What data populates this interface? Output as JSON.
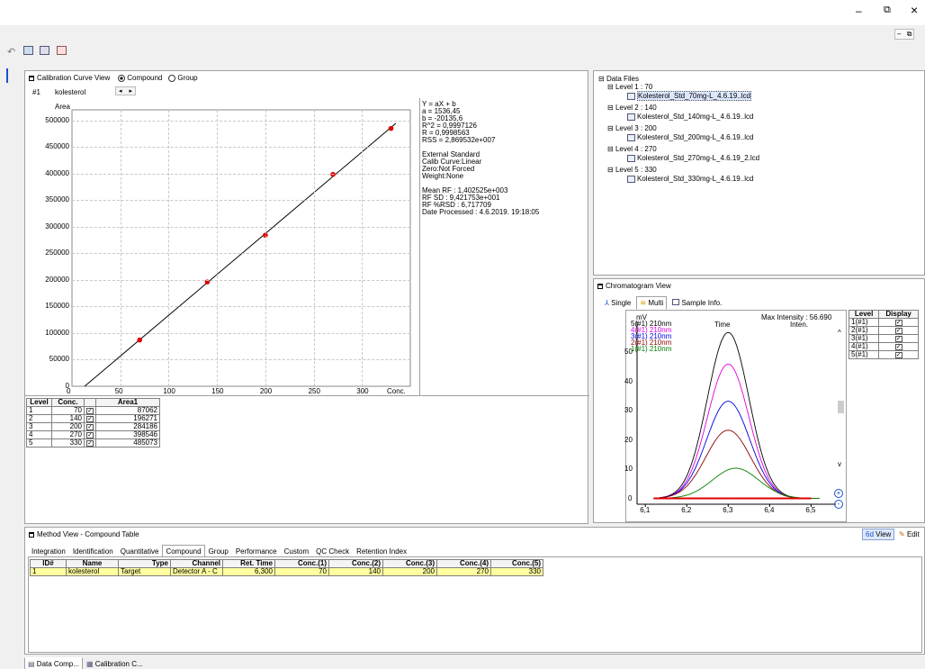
{
  "window_controls": {
    "minimize": "–",
    "restore": "⧉",
    "close": "×",
    "sub_minimize": "–",
    "sub_restore": "⧉"
  },
  "calib": {
    "title": "Calibration Curve View",
    "radio_compound": "Compound",
    "radio_group": "Group",
    "compound_id": "#1",
    "compound_name": "kolesterol",
    "nav_prev": "◂",
    "nav_next": "▸",
    "ylabel": "Area",
    "xlabel": "Conc.",
    "yticks": [
      "500000",
      "450000",
      "400000",
      "350000",
      "300000",
      "250000",
      "200000",
      "150000",
      "100000",
      "50000",
      "0"
    ],
    "xticks": [
      "0",
      "50",
      "100",
      "150",
      "200",
      "250",
      "300"
    ],
    "info": [
      "Y = aX + b",
      "a = 1536,45",
      "b = -20135,6",
      "R^2 = 0,9997126",
      "R = 0,9998563",
      "RSS = 2,869532e+007",
      "",
      "External Standard",
      "Calib Curve:Linear",
      "Zero:Not Forced",
      "Weight:None",
      "",
      "Mean RF :  1,402525e+003",
      "RF SD : 9,421753e+001",
      "RF %RSD : 6,717709",
      "Date Processed : 4.6.2019. 19:18:05"
    ]
  },
  "chart_data": {
    "type": "scatter",
    "points": [
      {
        "x": 70,
        "y": 87062
      },
      {
        "x": 140,
        "y": 196271
      },
      {
        "x": 200,
        "y": 284186
      },
      {
        "x": 270,
        "y": 398546
      },
      {
        "x": 330,
        "y": 485073
      }
    ],
    "fit": {
      "a": 1536.45,
      "b": -20135.6
    },
    "xlim": [
      0,
      350
    ],
    "ylim": [
      0,
      520000
    ],
    "xlabel": "Conc.",
    "ylabel": "Area"
  },
  "level_table": {
    "headers": [
      "Level",
      "Conc.",
      "Area1"
    ],
    "rows": [
      [
        "1",
        "70",
        "87062"
      ],
      [
        "2",
        "140",
        "196271"
      ],
      [
        "3",
        "200",
        "284186"
      ],
      [
        "4",
        "270",
        "398546"
      ],
      [
        "5",
        "330",
        "485073"
      ]
    ]
  },
  "data_files": {
    "root": "Data Files",
    "levels": [
      {
        "label": "Level 1 : 70",
        "file": "Kolesterol_Std_70mg-L_4.6.19..lcd"
      },
      {
        "label": "Level 2 : 140",
        "file": "Kolesterol_Std_140mg-L_4.6.19..lcd"
      },
      {
        "label": "Level 3 : 200",
        "file": "Kolesterol_Std_200mg-L_4.6.19..lcd"
      },
      {
        "label": "Level 4 : 270",
        "file": "Kolesterol_Std_270mg-L_4.6.19_2.lcd"
      },
      {
        "label": "Level 5 : 330",
        "file": "Kolesterol_Std_330mg-L_4.6.19..lcd"
      }
    ]
  },
  "chrom": {
    "title": "Chromatogram View",
    "tabs": [
      "Single",
      "Multi",
      "Sample Info."
    ],
    "ylabel": "mV",
    "max_intensity": "Max Intensity :  56.690",
    "time_label": "Time",
    "inten_label": "Inten.",
    "legend": [
      "5(#1) 210nm",
      "4(#1) 210nm",
      "3(#1) 210nm",
      "2(#1) 210nm",
      "1(#1) 210nm"
    ],
    "yticks": [
      "50",
      "40",
      "30",
      "20",
      "10",
      "0"
    ],
    "xticks": [
      "6,1",
      "6,2",
      "6,3",
      "6,4",
      "6,5"
    ],
    "peaks": [
      56.69,
      45.9,
      33.2,
      23.3,
      10.3
    ],
    "colors": [
      "#000000",
      "#e000e0",
      "#0000e0",
      "#8b0000",
      "#008000"
    ],
    "level_headers": [
      "Level",
      "Display"
    ],
    "levels": [
      "1(#1)",
      "2(#1)",
      "3(#1)",
      "4(#1)",
      "5(#1)"
    ]
  },
  "method": {
    "title": "Method View - Compound Table",
    "view_btn": "View",
    "edit_btn": "Edit",
    "tabs": [
      "Integration",
      "Identification",
      "Quantitative",
      "Compound",
      "Group",
      "Performance",
      "Custom",
      "QC Check",
      "Retention Index"
    ],
    "headers": [
      "ID#",
      "Name",
      "Type",
      "Channel",
      "Ret. Time",
      "Conc.(1)",
      "Conc.(2)",
      "Conc.(3)",
      "Conc.(4)",
      "Conc.(5)"
    ],
    "row": [
      "1",
      "kolesterol",
      "Target",
      "Detector A - C",
      "6,300",
      "70",
      "140",
      "200",
      "270",
      "330"
    ]
  },
  "bottom_tabs": [
    "Data Comp...",
    "Calibration C..."
  ]
}
